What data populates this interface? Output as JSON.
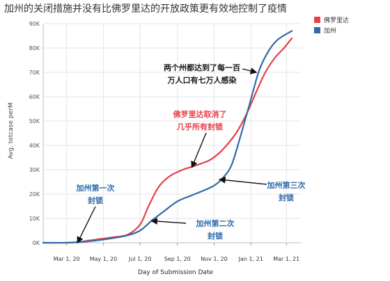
{
  "chart_data": {
    "type": "line",
    "title": "加州的关闭措施并没有比佛罗里达的开放政策更有效地控制了疫情",
    "xlabel": "Day of Submission Date",
    "ylabel": "Avg. totcase perM",
    "ylim": [
      0,
      90000
    ],
    "yticks": [
      0,
      10000,
      20000,
      30000,
      40000,
      50000,
      60000,
      70000,
      80000,
      90000
    ],
    "ytick_labels": [
      "0K",
      "10K",
      "20K",
      "30K",
      "40K",
      "50K",
      "60K",
      "70K",
      "80K",
      "90K"
    ],
    "xlim": [
      "2020-01-22",
      "2021-03-25"
    ],
    "xticks": [
      "2020-03-01",
      "2020-05-01",
      "2020-07-01",
      "2020-09-01",
      "2020-11-01",
      "2021-01-01",
      "2021-03-01"
    ],
    "xtick_labels": [
      "Mar 1, 20",
      "May 1, 20",
      "Jul 1, 20",
      "Sep 1, 20",
      "Nov 1, 20",
      "Jan 1, 21",
      "Mar 1, 21"
    ],
    "grid": true,
    "legend_position": "top-right",
    "series": [
      {
        "name": "佛罗里达",
        "color": "#e5404b",
        "points": [
          [
            "2020-01-22",
            0
          ],
          [
            "2020-03-01",
            0
          ],
          [
            "2020-03-20",
            300
          ],
          [
            "2020-04-15",
            1200
          ],
          [
            "2020-05-15",
            2200
          ],
          [
            "2020-06-10",
            3300
          ],
          [
            "2020-07-01",
            7500
          ],
          [
            "2020-07-15",
            15000
          ],
          [
            "2020-08-01",
            23000
          ],
          [
            "2020-08-20",
            27500
          ],
          [
            "2020-09-10",
            30000
          ],
          [
            "2020-09-25",
            31200
          ],
          [
            "2020-10-10",
            32500
          ],
          [
            "2020-10-25",
            34000
          ],
          [
            "2020-11-10",
            37000
          ],
          [
            "2020-11-25",
            41000
          ],
          [
            "2020-12-10",
            46000
          ],
          [
            "2020-12-25",
            53000
          ],
          [
            "2021-01-10",
            62000
          ],
          [
            "2021-01-25",
            70000
          ],
          [
            "2021-02-10",
            76000
          ],
          [
            "2021-02-25",
            80000
          ],
          [
            "2021-03-10",
            84000
          ]
        ]
      },
      {
        "name": "加州",
        "color": "#2f6aa8",
        "points": [
          [
            "2020-01-22",
            0
          ],
          [
            "2020-03-01",
            0
          ],
          [
            "2020-03-20",
            200
          ],
          [
            "2020-04-15",
            800
          ],
          [
            "2020-05-15",
            1800
          ],
          [
            "2020-06-10",
            3000
          ],
          [
            "2020-07-01",
            5000
          ],
          [
            "2020-07-20",
            9000
          ],
          [
            "2020-08-10",
            13000
          ],
          [
            "2020-09-01",
            17000
          ],
          [
            "2020-09-25",
            19500
          ],
          [
            "2020-10-15",
            21500
          ],
          [
            "2020-11-01",
            23500
          ],
          [
            "2020-11-15",
            26500
          ],
          [
            "2020-11-30",
            32000
          ],
          [
            "2020-12-15",
            44000
          ],
          [
            "2020-12-31",
            58000
          ],
          [
            "2021-01-15",
            71000
          ],
          [
            "2021-01-31",
            79000
          ],
          [
            "2021-02-15",
            83500
          ],
          [
            "2021-03-10",
            87000
          ]
        ]
      }
    ],
    "annotations": [
      {
        "id": "both-100k",
        "lines": [
          "两个州都达到了每一百",
          "万人口有七万人感染"
        ],
        "color": "#1a1a1a",
        "target": [
          "2021-01-10",
          70000
        ]
      },
      {
        "id": "fl-reopen",
        "lines": [
          "佛罗里达取消了",
          "几乎所有封锁"
        ],
        "color": "#e5404b",
        "target": [
          "2020-09-25",
          31000
        ]
      },
      {
        "id": "ca-lockdown-1",
        "lines": [
          "加州第一次",
          "封锁"
        ],
        "color": "#2f6aa8",
        "target": [
          "2020-03-19",
          0
        ]
      },
      {
        "id": "ca-lockdown-2",
        "lines": [
          "加州第二次",
          "封锁"
        ],
        "color": "#2f6aa8",
        "target": [
          "2020-07-20",
          9000
        ]
      },
      {
        "id": "ca-lockdown-3",
        "lines": [
          "加州第三次",
          "封锁"
        ],
        "color": "#2f6aa8",
        "target": [
          "2020-11-10",
          26000
        ]
      }
    ]
  }
}
